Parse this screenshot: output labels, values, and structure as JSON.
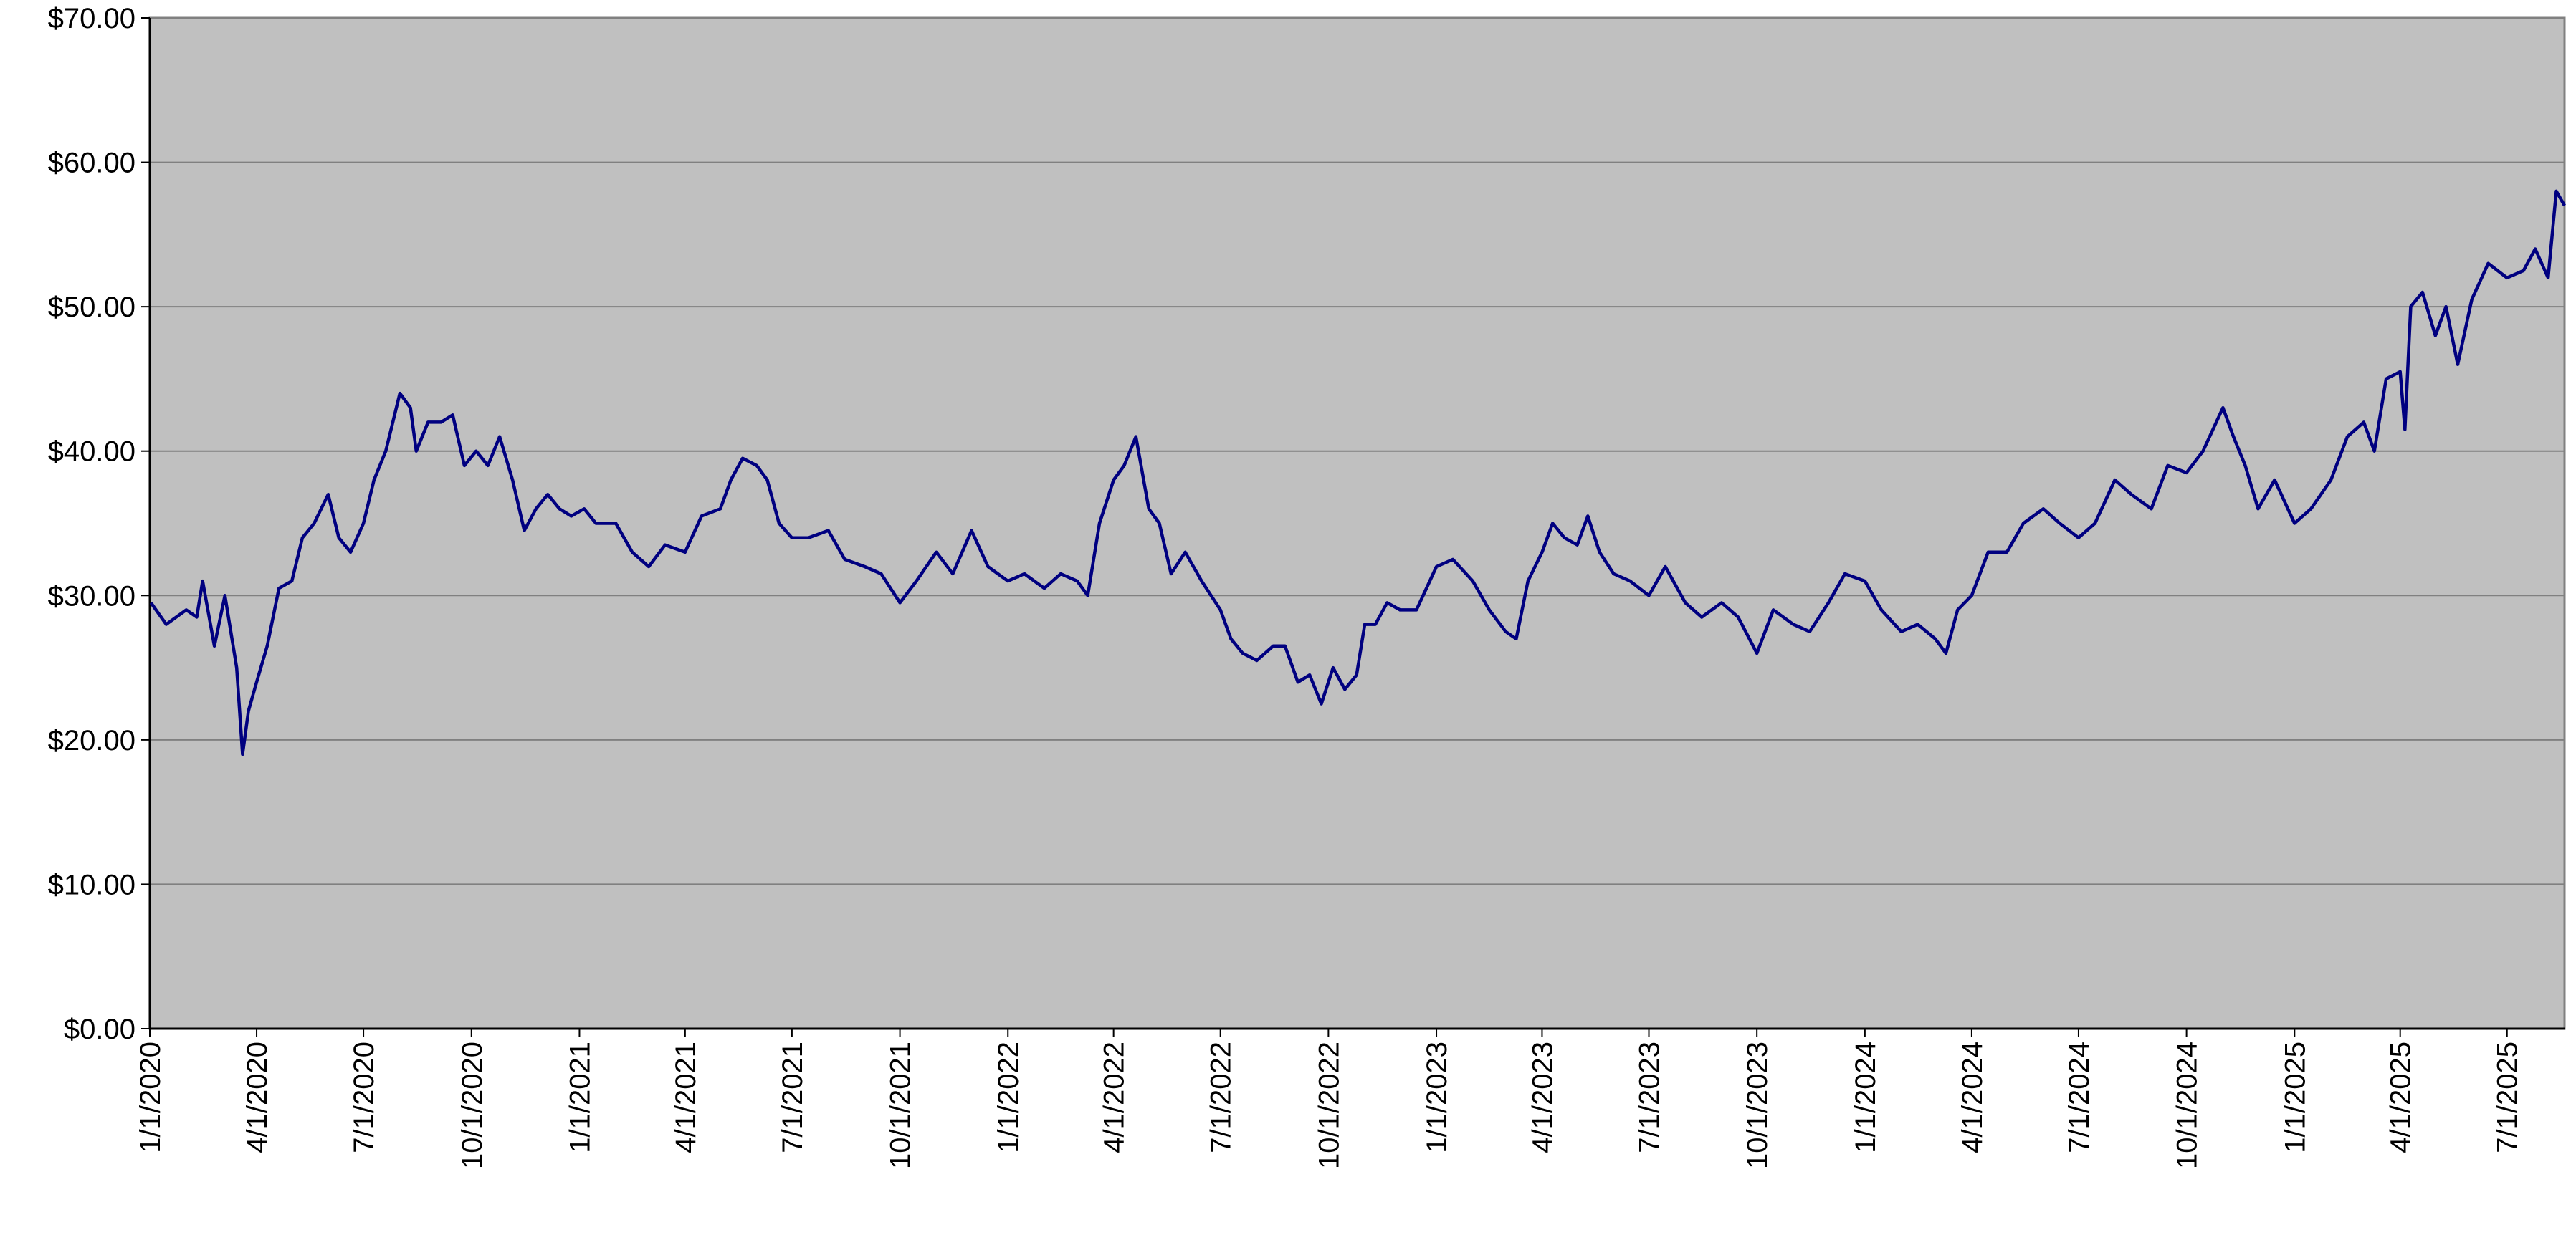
{
  "chart_data": {
    "type": "line",
    "color": "#000080",
    "background": "#c0c0c0",
    "grid": true,
    "xlim": [
      "1/1/2020",
      "8/19/2025"
    ],
    "xticks": [
      "1/1/2020",
      "4/1/2020",
      "7/1/2020",
      "10/1/2020",
      "1/1/2021",
      "4/1/2021",
      "7/1/2021",
      "10/1/2021",
      "1/1/2022",
      "4/1/2022",
      "7/1/2022",
      "10/1/2022",
      "1/1/2023",
      "4/1/2023",
      "7/1/2023",
      "10/1/2023",
      "1/1/2024",
      "4/1/2024",
      "7/1/2024",
      "10/1/2024",
      "1/1/2025",
      "4/1/2025",
      "7/1/2025"
    ],
    "ylim": [
      0,
      70
    ],
    "yticks": [
      {
        "value": 0,
        "label": "$0.00"
      },
      {
        "value": 10,
        "label": "$10.00"
      },
      {
        "value": 20,
        "label": "$20.00"
      },
      {
        "value": 30,
        "label": "$30.00"
      },
      {
        "value": 40,
        "label": "$40.00"
      },
      {
        "value": 50,
        "label": "$50.00"
      },
      {
        "value": 60,
        "label": "$60.00"
      },
      {
        "value": 70,
        "label": "$70.00"
      }
    ],
    "x": [
      "1/2/2020",
      "1/15/2020",
      "2/1/2020",
      "2/10/2020",
      "2/15/2020",
      "2/25/2020",
      "3/5/2020",
      "3/15/2020",
      "3/20/2020",
      "3/25/2020",
      "4/1/2020",
      "4/10/2020",
      "4/20/2020",
      "5/1/2020",
      "5/10/2020",
      "5/20/2020",
      "6/1/2020",
      "6/10/2020",
      "6/20/2020",
      "7/1/2020",
      "7/10/2020",
      "7/20/2020",
      "8/1/2020",
      "8/10/2020",
      "8/15/2020",
      "8/25/2020",
      "9/5/2020",
      "9/15/2020",
      "9/25/2020",
      "10/5/2020",
      "10/15/2020",
      "10/25/2020",
      "11/5/2020",
      "11/15/2020",
      "11/25/2020",
      "12/5/2020",
      "12/15/2020",
      "12/25/2020",
      "1/5/2021",
      "1/15/2021",
      "2/1/2021",
      "2/15/2021",
      "3/1/2021",
      "3/15/2021",
      "4/1/2021",
      "4/15/2021",
      "5/1/2021",
      "5/10/2021",
      "5/20/2021",
      "6/1/2021",
      "6/10/2021",
      "6/20/2021",
      "7/1/2021",
      "7/15/2021",
      "8/1/2021",
      "8/15/2021",
      "9/1/2021",
      "9/15/2021",
      "10/1/2021",
      "10/15/2021",
      "11/1/2021",
      "11/15/2021",
      "12/1/2021",
      "12/15/2021",
      "1/1/2022",
      "1/15/2022",
      "2/1/2022",
      "2/15/2022",
      "3/1/2022",
      "3/10/2022",
      "3/20/2022",
      "4/1/2022",
      "4/10/2022",
      "4/20/2022",
      "5/1/2022",
      "5/10/2022",
      "5/20/2022",
      "6/1/2022",
      "6/15/2022",
      "7/1/2022",
      "7/10/2022",
      "7/20/2022",
      "8/1/2022",
      "8/15/2022",
      "8/25/2022",
      "9/5/2022",
      "9/15/2022",
      "9/25/2022",
      "10/5/2022",
      "10/15/2022",
      "10/25/2022",
      "11/1/2022",
      "11/10/2022",
      "11/20/2022",
      "12/1/2022",
      "12/15/2022",
      "1/1/2023",
      "1/15/2023",
      "2/1/2023",
      "2/15/2023",
      "3/1/2023",
      "3/10/2023",
      "3/20/2023",
      "4/1/2023",
      "4/10/2023",
      "4/20/2023",
      "5/1/2023",
      "5/10/2023",
      "5/20/2023",
      "6/1/2023",
      "6/15/2023",
      "7/1/2023",
      "7/15/2023",
      "8/1/2023",
      "8/15/2023",
      "9/1/2023",
      "9/15/2023",
      "10/1/2023",
      "10/15/2023",
      "11/1/2023",
      "11/15/2023",
      "12/1/2023",
      "12/15/2023",
      "1/1/2024",
      "1/15/2024",
      "2/1/2024",
      "2/15/2024",
      "3/1/2024",
      "3/10/2024",
      "3/20/2024",
      "4/1/2024",
      "4/15/2024",
      "5/1/2024",
      "5/15/2024",
      "6/1/2024",
      "6/15/2024",
      "7/1/2024",
      "7/15/2024",
      "8/1/2024",
      "8/15/2024",
      "9/1/2024",
      "9/15/2024",
      "10/1/2024",
      "10/15/2024",
      "11/1/2024",
      "11/10/2024",
      "11/20/2024",
      "12/1/2024",
      "12/15/2024",
      "1/1/2025",
      "1/15/2025",
      "2/1/2025",
      "2/15/2025",
      "3/1/2025",
      "3/10/2025",
      "3/20/2025",
      "4/1/2025",
      "4/5/2025",
      "4/10/2025",
      "4/20/2025",
      "5/1/2025",
      "5/10/2025",
      "5/20/2025",
      "6/1/2025",
      "6/15/2025",
      "7/1/2025",
      "7/15/2025",
      "7/25/2025",
      "8/5/2025",
      "8/12/2025",
      "8/19/2025"
    ],
    "values": [
      29.5,
      28,
      29,
      28.5,
      31,
      26.5,
      30,
      25,
      19,
      22,
      24,
      26.5,
      30.5,
      31,
      34,
      35,
      37,
      34,
      33,
      35,
      38,
      40,
      44,
      43,
      40,
      42,
      42,
      42.5,
      39,
      40,
      39,
      41,
      38,
      34.5,
      36,
      37,
      36,
      35.5,
      36,
      35,
      35,
      33,
      32,
      33.5,
      33,
      35.5,
      36,
      38,
      39.5,
      39,
      38,
      35,
      34,
      34,
      34.5,
      32.5,
      32,
      31.5,
      29.5,
      31,
      33,
      31.5,
      34.5,
      32,
      31,
      31.5,
      30.5,
      31.5,
      31,
      30,
      35,
      38,
      39,
      41,
      36,
      35,
      31.5,
      33,
      31,
      29,
      27,
      26,
      25.5,
      26.5,
      26.5,
      24,
      24.5,
      22.5,
      25,
      23.5,
      24.5,
      28,
      28,
      29.5,
      29,
      29,
      32,
      32.5,
      31,
      29,
      27.5,
      27,
      31,
      33,
      35,
      34,
      33.5,
      35.5,
      33,
      31.5,
      31,
      30,
      32,
      29.5,
      28.5,
      29.5,
      28.5,
      26,
      29,
      28,
      27.5,
      29.5,
      31.5,
      31,
      29,
      27.5,
      28,
      27,
      26,
      29,
      30,
      33,
      33,
      35,
      36,
      35,
      34,
      35,
      38,
      37,
      36,
      39,
      38.5,
      40,
      43,
      41,
      39,
      36,
      38,
      35,
      36,
      38,
      41,
      42,
      40,
      45,
      45.5,
      41.5,
      50,
      51,
      48,
      50,
      46,
      50.5,
      53,
      52,
      52.5,
      54,
      52,
      58,
      57
    ]
  }
}
